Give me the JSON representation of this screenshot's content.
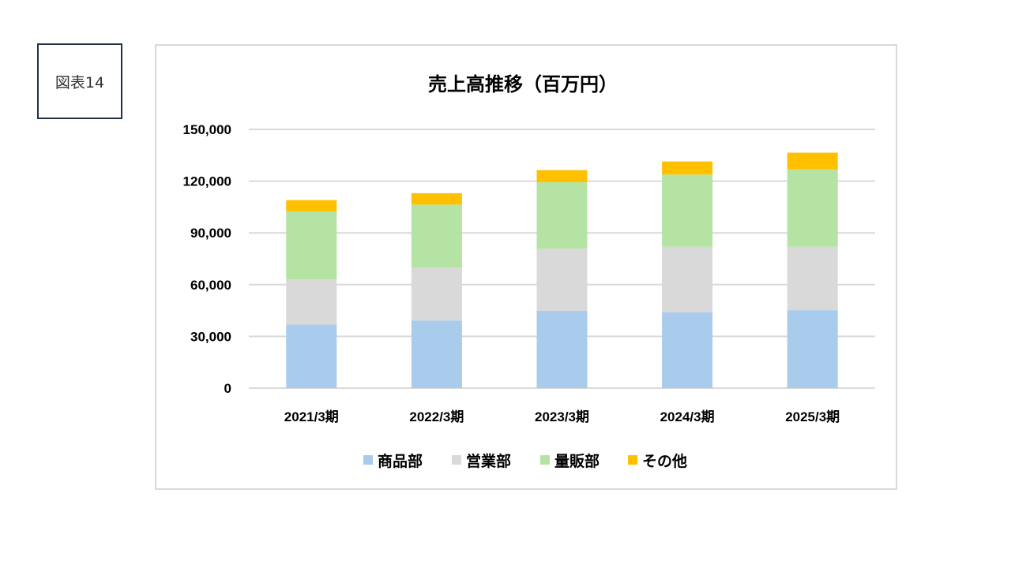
{
  "figure_label": "図表14",
  "chart_data": {
    "type": "bar",
    "stacked": true,
    "title": "売上高推移（百万円）",
    "xlabel": "",
    "ylabel": "",
    "categories": [
      "2021/3期",
      "2022/3期",
      "2023/3期",
      "2024/3期",
      "2025/3期"
    ],
    "ylim": [
      0,
      150000
    ],
    "yticks": [
      0,
      30000,
      60000,
      90000,
      120000,
      150000
    ],
    "ytick_labels": [
      "0",
      "30,000",
      "60,000",
      "90,000",
      "120,000",
      "150,000"
    ],
    "grid": true,
    "legend_position": "bottom",
    "series": [
      {
        "name": "商品部",
        "color": "#a9cbec",
        "values": [
          36800,
          39200,
          44800,
          44000,
          45200
        ]
      },
      {
        "name": "営業部",
        "color": "#d9d9d9",
        "values": [
          26200,
          30800,
          36000,
          38000,
          36800
        ]
      },
      {
        "name": "量販部",
        "color": "#b4e3a4",
        "values": [
          39500,
          36400,
          38600,
          41800,
          44800
        ]
      },
      {
        "name": "その他",
        "color": "#ffc000",
        "values": [
          6500,
          6600,
          7000,
          7600,
          9700
        ]
      }
    ]
  }
}
